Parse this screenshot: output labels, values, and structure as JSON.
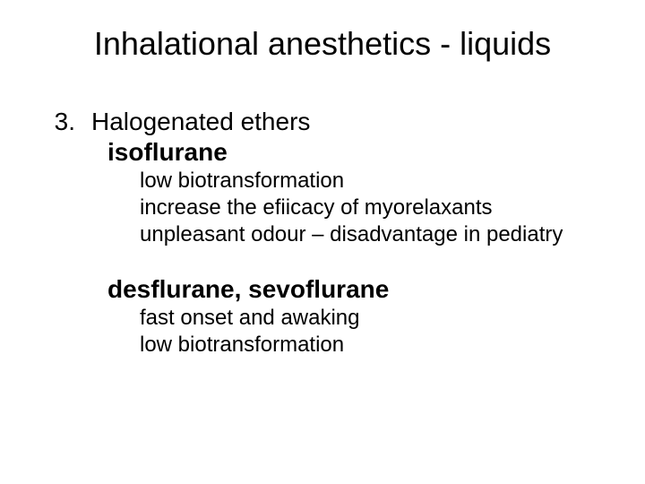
{
  "title": "Inhalational anesthetics - liquids",
  "list_number": "3.",
  "item3_heading": "Halogenated ethers",
  "drug1_name": "isoflurane",
  "drug1_point1": "low biotransformation",
  "drug1_point2": "increase the efiicacy of myorelaxants",
  "drug1_point3": "unpleasant odour – disadvantage in pediatry",
  "drug2_name": "desflurane, sevoflurane",
  "drug2_point1": "fast onset and awaking",
  "drug2_point2": "low biotransformation",
  "colors": {
    "text": "#000000",
    "background": "#ffffff"
  },
  "typography": {
    "title_fontsize_pt": 36,
    "level1_fontsize_pt": 28,
    "level2_fontsize_pt": 24,
    "font_family": "Arial"
  }
}
